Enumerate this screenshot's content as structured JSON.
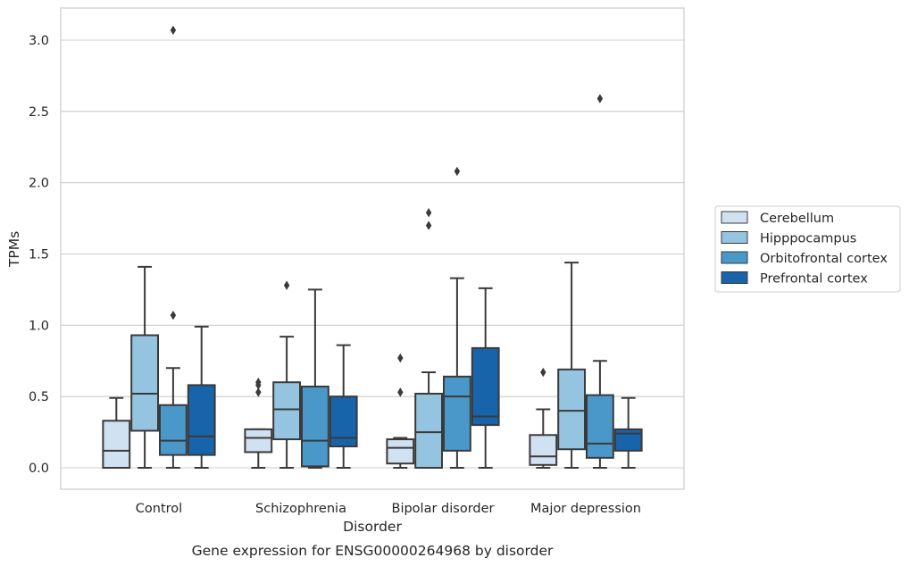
{
  "chart_data": {
    "type": "box",
    "caption": "Gene expression for ENSG00000264968 by disorder",
    "xlabel": "Disorder",
    "ylabel": "TPMs",
    "ylim": [
      -0.15,
      3.23
    ],
    "yticks": [
      0.0,
      0.5,
      1.0,
      1.5,
      2.0,
      2.5,
      3.0
    ],
    "ytick_labels": [
      "0.0",
      "0.5",
      "1.0",
      "1.5",
      "2.0",
      "2.5",
      "3.0"
    ],
    "grid": "horizontal",
    "legend_position": "right",
    "categories": [
      "Control",
      "Schizophrenia",
      "Bipolar disorder",
      "Major depression"
    ],
    "series": [
      {
        "name": "Cerebellum",
        "color": "#d0e1f2",
        "boxes": [
          {
            "whislo": 0.0,
            "q1": 0.0,
            "med": 0.12,
            "q3": 0.33,
            "whishi": 0.49,
            "fliers": []
          },
          {
            "whislo": 0.0,
            "q1": 0.11,
            "med": 0.21,
            "q3": 0.27,
            "whishi": 0.27,
            "fliers": [
              0.53,
              0.58,
              0.6
            ]
          },
          {
            "whislo": 0.0,
            "q1": 0.03,
            "med": 0.14,
            "q3": 0.2,
            "whishi": 0.21,
            "fliers": [
              0.53,
              0.77
            ]
          },
          {
            "whislo": 0.0,
            "q1": 0.02,
            "med": 0.08,
            "q3": 0.23,
            "whishi": 0.41,
            "fliers": [
              0.67
            ]
          }
        ]
      },
      {
        "name": "Hipppocampus",
        "color": "#94c4df",
        "boxes": [
          {
            "whislo": 0.0,
            "q1": 0.26,
            "med": 0.52,
            "q3": 0.93,
            "whishi": 1.41,
            "fliers": []
          },
          {
            "whislo": 0.0,
            "q1": 0.2,
            "med": 0.41,
            "q3": 0.6,
            "whishi": 0.92,
            "fliers": [
              1.28
            ]
          },
          {
            "whislo": 0.0,
            "q1": 0.0,
            "med": 0.25,
            "q3": 0.52,
            "whishi": 0.67,
            "fliers": [
              1.7,
              1.79
            ]
          },
          {
            "whislo": 0.0,
            "q1": 0.13,
            "med": 0.4,
            "q3": 0.69,
            "whishi": 1.44,
            "fliers": []
          }
        ]
      },
      {
        "name": "Orbitofrontal cortex",
        "color": "#4a98c9",
        "boxes": [
          {
            "whislo": 0.0,
            "q1": 0.09,
            "med": 0.19,
            "q3": 0.44,
            "whishi": 0.7,
            "fliers": [
              1.07,
              3.07
            ]
          },
          {
            "whislo": 0.0,
            "q1": 0.01,
            "med": 0.19,
            "q3": 0.57,
            "whishi": 1.25,
            "fliers": []
          },
          {
            "whislo": 0.0,
            "q1": 0.12,
            "med": 0.5,
            "q3": 0.64,
            "whishi": 1.33,
            "fliers": [
              2.08
            ]
          },
          {
            "whislo": 0.0,
            "q1": 0.07,
            "med": 0.17,
            "q3": 0.51,
            "whishi": 0.75,
            "fliers": [
              2.59
            ]
          }
        ]
      },
      {
        "name": "Prefrontal cortex",
        "color": "#1764ab",
        "boxes": [
          {
            "whislo": 0.0,
            "q1": 0.09,
            "med": 0.22,
            "q3": 0.58,
            "whishi": 0.99,
            "fliers": []
          },
          {
            "whislo": 0.0,
            "q1": 0.15,
            "med": 0.21,
            "q3": 0.5,
            "whishi": 0.86,
            "fliers": []
          },
          {
            "whislo": 0.0,
            "q1": 0.3,
            "med": 0.36,
            "q3": 0.84,
            "whishi": 1.26,
            "fliers": []
          },
          {
            "whislo": 0.0,
            "q1": 0.12,
            "med": 0.24,
            "q3": 0.27,
            "whishi": 0.49,
            "fliers": []
          }
        ]
      }
    ]
  }
}
